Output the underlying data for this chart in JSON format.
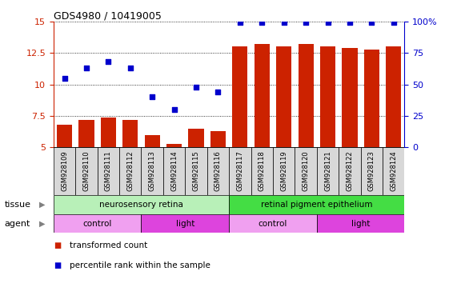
{
  "title": "GDS4980 / 10419005",
  "samples": [
    "GSM928109",
    "GSM928110",
    "GSM928111",
    "GSM928112",
    "GSM928113",
    "GSM928114",
    "GSM928115",
    "GSM928116",
    "GSM928117",
    "GSM928118",
    "GSM928119",
    "GSM928120",
    "GSM928121",
    "GSM928122",
    "GSM928123",
    "GSM928124"
  ],
  "bar_values": [
    6.8,
    7.2,
    7.4,
    7.2,
    6.0,
    5.3,
    6.5,
    6.3,
    13.0,
    13.2,
    13.0,
    13.2,
    13.0,
    12.9,
    12.8,
    13.0
  ],
  "dot_values_pct": [
    55,
    63,
    68,
    63,
    40,
    30,
    48,
    44,
    99,
    99,
    99,
    99,
    99,
    99,
    99,
    99
  ],
  "bar_color": "#cc2200",
  "dot_color": "#0000cc",
  "ylim_left": [
    5,
    15
  ],
  "yticks_left": [
    5,
    7.5,
    10,
    12.5,
    15
  ],
  "ytick_labels_left": [
    "5",
    "7.5",
    "10",
    "12.5",
    "15"
  ],
  "ylim_right": [
    0,
    100
  ],
  "yticks_right": [
    0,
    25,
    50,
    75,
    100
  ],
  "ytick_labels_right": [
    "0",
    "25",
    "50",
    "75",
    "100%"
  ],
  "tissue_groups": [
    {
      "label": "neurosensory retina",
      "start": 0,
      "end": 8,
      "color": "#b8f0b8"
    },
    {
      "label": "retinal pigment epithelium",
      "start": 8,
      "end": 16,
      "color": "#44dd44"
    }
  ],
  "agent_groups": [
    {
      "label": "control",
      "start": 0,
      "end": 4,
      "color": "#f0a0f0"
    },
    {
      "label": "light",
      "start": 4,
      "end": 8,
      "color": "#dd44dd"
    },
    {
      "label": "control",
      "start": 8,
      "end": 12,
      "color": "#f0a0f0"
    },
    {
      "label": "light",
      "start": 12,
      "end": 16,
      "color": "#dd44dd"
    }
  ],
  "legend_items": [
    {
      "label": "transformed count",
      "color": "#cc2200"
    },
    {
      "label": "percentile rank within the sample",
      "color": "#0000cc"
    }
  ],
  "sample_box_color": "#d8d8d8",
  "bg_color": "#ffffff",
  "grid_color": "#000000"
}
